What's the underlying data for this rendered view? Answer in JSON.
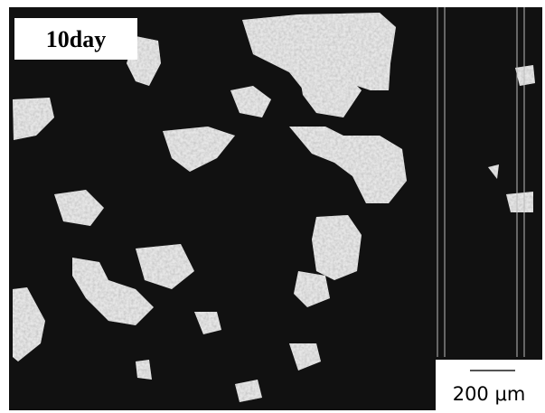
{
  "label": "10day",
  "scale_bar": {
    "label": "200 μm"
  }
}
